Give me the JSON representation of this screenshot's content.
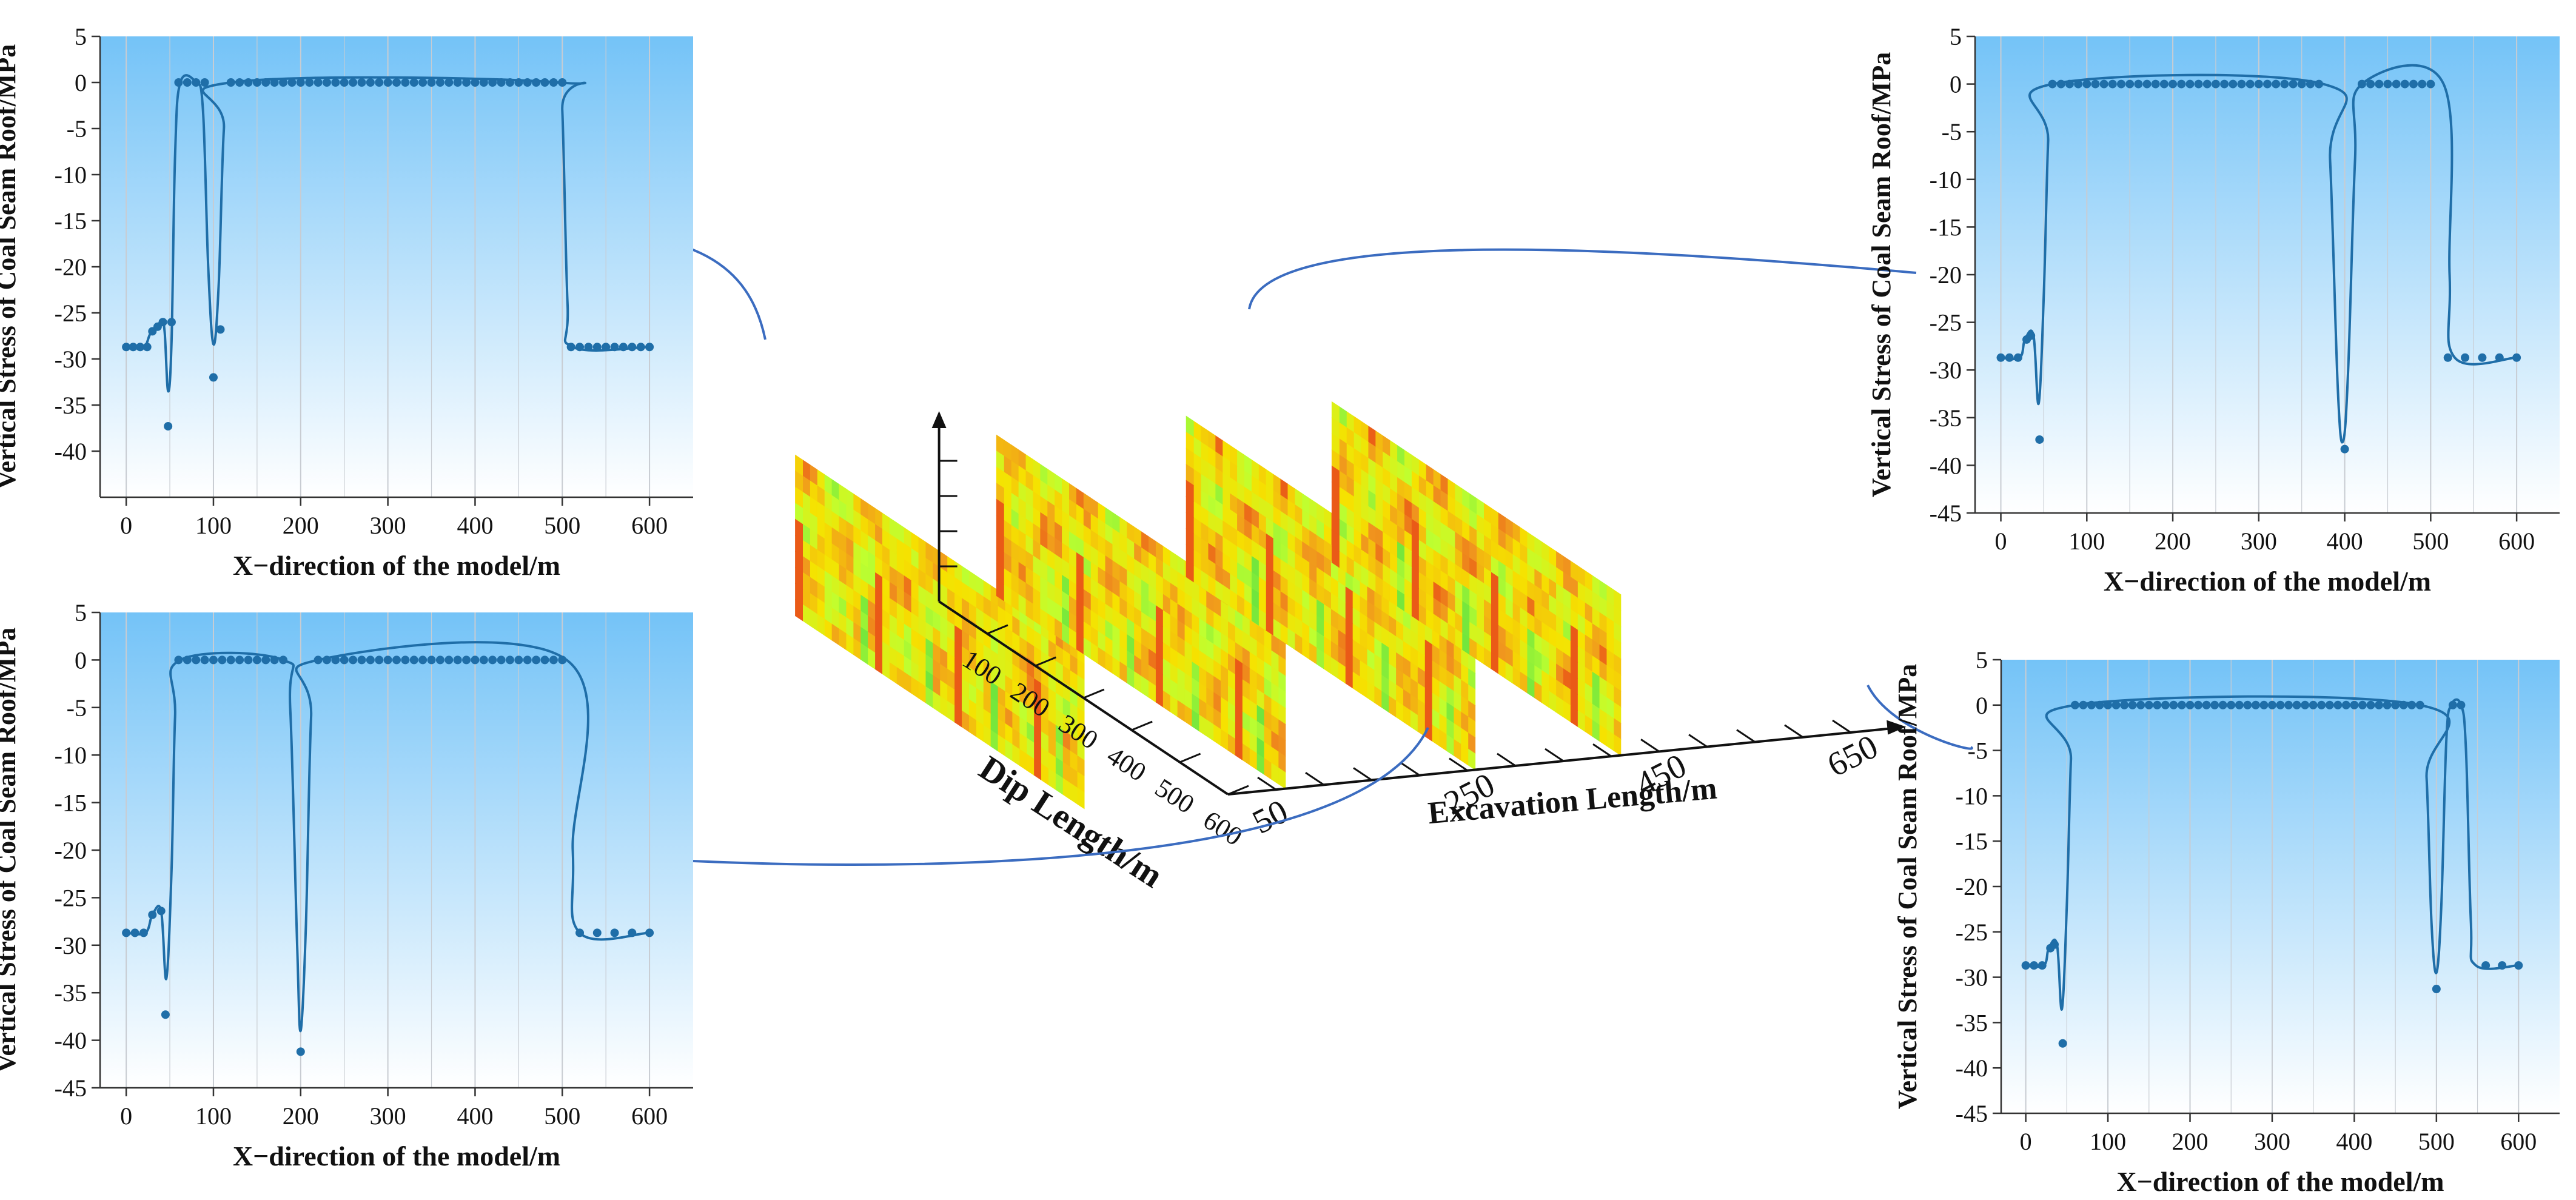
{
  "colors": {
    "series": "#1f6ea8",
    "bg_top": "#74c3f7",
    "bg_bottom": "#ffffff",
    "connector": "#3b6cc0",
    "grid": "#c8ccd2",
    "heat_low": "#bfff30",
    "heat_mid": "#f6e200",
    "heat_high": "#e8501a",
    "heat_green": "#60e040"
  },
  "center": {
    "x_axis_label": "Dip Length/m",
    "x_ticks": [
      "100",
      "200",
      "300",
      "400",
      "500",
      "600"
    ],
    "z_axis_label": "Excavation Length/m",
    "z_ticks": [
      "50",
      "250",
      "450",
      "650"
    ],
    "colormap": [
      "green",
      "yellow",
      "orange",
      "red"
    ]
  },
  "chart_data": [
    {
      "type": "scatter-line",
      "position": "top-left",
      "xlabel": "X−direction of the model/m",
      "ylabel": "Vertical Stress of Coal Seam Roof/MPa",
      "xlim": [
        -30,
        650
      ],
      "ylim": [
        -45,
        5
      ],
      "xticks": [
        0,
        100,
        200,
        300,
        400,
        500,
        600
      ],
      "yticks": [
        5,
        0,
        -5,
        -10,
        -15,
        -20,
        -25,
        -30,
        -35,
        -40
      ],
      "points": [
        [
          0,
          -28.7
        ],
        [
          8,
          -28.7
        ],
        [
          16,
          -28.7
        ],
        [
          24,
          -28.7
        ],
        [
          30,
          -27
        ],
        [
          36,
          -26.5
        ],
        [
          42,
          -26
        ],
        [
          48,
          -37.3
        ],
        [
          52,
          -26
        ],
        [
          60,
          0
        ],
        [
          70,
          0
        ],
        [
          80,
          0
        ],
        [
          90,
          0
        ],
        [
          100,
          -32
        ],
        [
          108,
          -26.8
        ],
        [
          120,
          0
        ],
        [
          130,
          0
        ],
        [
          140,
          0
        ],
        [
          150,
          0
        ],
        [
          160,
          0
        ],
        [
          170,
          0
        ],
        [
          180,
          0
        ],
        [
          190,
          0
        ],
        [
          200,
          0
        ],
        [
          210,
          0
        ],
        [
          220,
          0
        ],
        [
          230,
          0
        ],
        [
          240,
          0
        ],
        [
          250,
          0
        ],
        [
          260,
          0
        ],
        [
          270,
          0
        ],
        [
          280,
          0
        ],
        [
          290,
          0
        ],
        [
          300,
          0
        ],
        [
          310,
          0
        ],
        [
          320,
          0
        ],
        [
          330,
          0
        ],
        [
          340,
          0
        ],
        [
          350,
          0
        ],
        [
          360,
          0
        ],
        [
          370,
          0
        ],
        [
          380,
          0
        ],
        [
          390,
          0
        ],
        [
          400,
          0
        ],
        [
          410,
          0
        ],
        [
          420,
          0
        ],
        [
          430,
          0
        ],
        [
          440,
          0
        ],
        [
          450,
          0
        ],
        [
          460,
          0
        ],
        [
          470,
          0
        ],
        [
          480,
          0
        ],
        [
          490,
          0
        ],
        [
          500,
          0
        ],
        [
          510,
          -28.7
        ],
        [
          520,
          -28.7
        ],
        [
          530,
          -28.7
        ],
        [
          540,
          -28.7
        ],
        [
          550,
          -28.7
        ],
        [
          560,
          -28.7
        ],
        [
          570,
          -28.7
        ],
        [
          580,
          -28.7
        ],
        [
          590,
          -28.7
        ],
        [
          600,
          -28.7
        ]
      ],
      "curve": [
        [
          0,
          -28.7
        ],
        [
          20,
          -28.7
        ],
        [
          28,
          -27.2
        ],
        [
          40,
          -26
        ],
        [
          44,
          -27
        ],
        [
          48,
          -33.5
        ],
        [
          52,
          -28
        ],
        [
          56,
          -8
        ],
        [
          62,
          0
        ],
        [
          80,
          0
        ],
        [
          88,
          -3
        ],
        [
          94,
          -20
        ],
        [
          100,
          -28.4
        ],
        [
          106,
          -22
        ],
        [
          112,
          -5
        ],
        [
          120,
          0
        ],
        [
          495,
          0
        ],
        [
          500,
          -3
        ],
        [
          506,
          -24
        ],
        [
          512,
          -28.7
        ],
        [
          600,
          -28.7
        ]
      ]
    },
    {
      "type": "scatter-line",
      "position": "bottom-left",
      "xlabel": "X−direction of the model/m",
      "ylabel": "Vertical Stress of Coal Seam Roof/MPa",
      "xlim": [
        -30,
        650
      ],
      "ylim": [
        -45,
        5
      ],
      "xticks": [
        0,
        100,
        200,
        300,
        400,
        500,
        600
      ],
      "yticks": [
        5,
        0,
        -5,
        -10,
        -15,
        -20,
        -25,
        -30,
        -35,
        -40,
        -45
      ],
      "points": [
        [
          0,
          -28.7
        ],
        [
          10,
          -28.7
        ],
        [
          20,
          -28.7
        ],
        [
          30,
          -26.8
        ],
        [
          40,
          -26.4
        ],
        [
          45,
          -37.3
        ],
        [
          60,
          0
        ],
        [
          70,
          0
        ],
        [
          80,
          0
        ],
        [
          90,
          0
        ],
        [
          100,
          0
        ],
        [
          110,
          0
        ],
        [
          120,
          0
        ],
        [
          130,
          0
        ],
        [
          140,
          0
        ],
        [
          150,
          0
        ],
        [
          160,
          0
        ],
        [
          170,
          0
        ],
        [
          180,
          0
        ],
        [
          200,
          -41.2
        ],
        [
          220,
          0
        ],
        [
          230,
          0
        ],
        [
          240,
          0
        ],
        [
          250,
          0
        ],
        [
          260,
          0
        ],
        [
          270,
          0
        ],
        [
          280,
          0
        ],
        [
          290,
          0
        ],
        [
          300,
          0
        ],
        [
          310,
          0
        ],
        [
          320,
          0
        ],
        [
          330,
          0
        ],
        [
          340,
          0
        ],
        [
          350,
          0
        ],
        [
          360,
          0
        ],
        [
          370,
          0
        ],
        [
          380,
          0
        ],
        [
          390,
          0
        ],
        [
          400,
          0
        ],
        [
          410,
          0
        ],
        [
          420,
          0
        ],
        [
          430,
          0
        ],
        [
          440,
          0
        ],
        [
          450,
          0
        ],
        [
          460,
          0
        ],
        [
          470,
          0
        ],
        [
          480,
          0
        ],
        [
          490,
          0
        ],
        [
          500,
          0
        ],
        [
          520,
          -28.7
        ],
        [
          540,
          -28.7
        ],
        [
          560,
          -28.7
        ],
        [
          580,
          -28.7
        ],
        [
          600,
          -28.7
        ]
      ],
      "curve": [
        [
          0,
          -28.7
        ],
        [
          22,
          -28.7
        ],
        [
          30,
          -26.8
        ],
        [
          40,
          -26.4
        ],
        [
          46,
          -33.5
        ],
        [
          52,
          -22
        ],
        [
          56,
          -6
        ],
        [
          62,
          0
        ],
        [
          180,
          0
        ],
        [
          188,
          -5
        ],
        [
          196,
          -30
        ],
        [
          200,
          -39
        ],
        [
          206,
          -28
        ],
        [
          212,
          -6
        ],
        [
          220,
          0
        ],
        [
          505,
          0
        ],
        [
          512,
          -20
        ],
        [
          520,
          -28.7
        ],
        [
          600,
          -28.7
        ]
      ]
    },
    {
      "type": "scatter-line",
      "position": "top-right",
      "xlabel": "X−direction of the model/m",
      "ylabel": "Vertical Stress of Coal Seam Roof/MPa",
      "xlim": [
        -30,
        650
      ],
      "ylim": [
        -45,
        5
      ],
      "xticks": [
        0,
        100,
        200,
        300,
        400,
        500,
        600
      ],
      "yticks": [
        5,
        0,
        -5,
        -10,
        -15,
        -20,
        -25,
        -30,
        -35,
        -40,
        -45
      ],
      "points": [
        [
          0,
          -28.7
        ],
        [
          10,
          -28.7
        ],
        [
          20,
          -28.7
        ],
        [
          30,
          -26.8
        ],
        [
          35,
          -26.4
        ],
        [
          45,
          -37.3
        ],
        [
          60,
          0
        ],
        [
          70,
          0
        ],
        [
          80,
          0
        ],
        [
          90,
          0
        ],
        [
          100,
          0
        ],
        [
          110,
          0
        ],
        [
          120,
          0
        ],
        [
          130,
          0
        ],
        [
          140,
          0
        ],
        [
          150,
          0
        ],
        [
          160,
          0
        ],
        [
          170,
          0
        ],
        [
          180,
          0
        ],
        [
          190,
          0
        ],
        [
          200,
          0
        ],
        [
          210,
          0
        ],
        [
          220,
          0
        ],
        [
          230,
          0
        ],
        [
          240,
          0
        ],
        [
          250,
          0
        ],
        [
          260,
          0
        ],
        [
          270,
          0
        ],
        [
          280,
          0
        ],
        [
          290,
          0
        ],
        [
          300,
          0
        ],
        [
          310,
          0
        ],
        [
          320,
          0
        ],
        [
          330,
          0
        ],
        [
          340,
          0
        ],
        [
          350,
          0
        ],
        [
          360,
          0
        ],
        [
          370,
          0
        ],
        [
          400,
          -38.3
        ],
        [
          420,
          0
        ],
        [
          430,
          0
        ],
        [
          440,
          0
        ],
        [
          450,
          0
        ],
        [
          460,
          0
        ],
        [
          470,
          0
        ],
        [
          480,
          0
        ],
        [
          490,
          0
        ],
        [
          500,
          0
        ],
        [
          520,
          -28.7
        ],
        [
          540,
          -28.7
        ],
        [
          560,
          -28.7
        ],
        [
          580,
          -28.7
        ],
        [
          600,
          -28.7
        ]
      ],
      "curve": [
        [
          0,
          -28.7
        ],
        [
          22,
          -28.7
        ],
        [
          28,
          -26.8
        ],
        [
          38,
          -26.4
        ],
        [
          44,
          -33.5
        ],
        [
          50,
          -22
        ],
        [
          55,
          -6
        ],
        [
          60,
          0
        ],
        [
          375,
          0
        ],
        [
          383,
          -8
        ],
        [
          392,
          -32
        ],
        [
          398,
          -37.5
        ],
        [
          404,
          -30
        ],
        [
          412,
          -8
        ],
        [
          420,
          0
        ],
        [
          515,
          0
        ],
        [
          522,
          -20
        ],
        [
          528,
          -28.7
        ],
        [
          600,
          -28.7
        ]
      ]
    },
    {
      "type": "scatter-line",
      "position": "bottom-right",
      "xlabel": "X−direction of the model/m",
      "ylabel": "Vertical Stress of Coal Seam Roof/MPa",
      "xlim": [
        -30,
        650
      ],
      "ylim": [
        -45,
        5
      ],
      "xticks": [
        0,
        100,
        200,
        300,
        400,
        500,
        600
      ],
      "yticks": [
        5,
        0,
        -5,
        -10,
        -15,
        -20,
        -25,
        -30,
        -35,
        -40,
        -45
      ],
      "points": [
        [
          0,
          -28.7
        ],
        [
          10,
          -28.7
        ],
        [
          20,
          -28.7
        ],
        [
          30,
          -26.8
        ],
        [
          35,
          -26.4
        ],
        [
          45,
          -37.3
        ],
        [
          60,
          0
        ],
        [
          70,
          0
        ],
        [
          80,
          0
        ],
        [
          90,
          0
        ],
        [
          100,
          0
        ],
        [
          110,
          0
        ],
        [
          120,
          0
        ],
        [
          130,
          0
        ],
        [
          140,
          0
        ],
        [
          150,
          0
        ],
        [
          160,
          0
        ],
        [
          170,
          0
        ],
        [
          180,
          0
        ],
        [
          190,
          0
        ],
        [
          200,
          0
        ],
        [
          210,
          0
        ],
        [
          220,
          0
        ],
        [
          230,
          0
        ],
        [
          240,
          0
        ],
        [
          250,
          0
        ],
        [
          260,
          0
        ],
        [
          270,
          0
        ],
        [
          280,
          0
        ],
        [
          290,
          0
        ],
        [
          300,
          0
        ],
        [
          310,
          0
        ],
        [
          320,
          0
        ],
        [
          330,
          0
        ],
        [
          340,
          0
        ],
        [
          350,
          0
        ],
        [
          360,
          0
        ],
        [
          370,
          0
        ],
        [
          380,
          0
        ],
        [
          390,
          0
        ],
        [
          400,
          0
        ],
        [
          410,
          0
        ],
        [
          420,
          0
        ],
        [
          430,
          0
        ],
        [
          440,
          0
        ],
        [
          450,
          0
        ],
        [
          460,
          0
        ],
        [
          470,
          0
        ],
        [
          480,
          0
        ],
        [
          500,
          -31.3
        ],
        [
          520,
          0
        ],
        [
          530,
          0
        ],
        [
          560,
          -28.7
        ],
        [
          580,
          -28.7
        ],
        [
          600,
          -28.7
        ]
      ],
      "curve": [
        [
          0,
          -28.7
        ],
        [
          22,
          -28.7
        ],
        [
          28,
          -26.8
        ],
        [
          38,
          -26.4
        ],
        [
          44,
          -33.5
        ],
        [
          50,
          -22
        ],
        [
          55,
          -6
        ],
        [
          60,
          0
        ],
        [
          480,
          0
        ],
        [
          488,
          -8
        ],
        [
          494,
          -24
        ],
        [
          500,
          -29.5
        ],
        [
          506,
          -22
        ],
        [
          512,
          -4
        ],
        [
          518,
          0
        ],
        [
          530,
          0
        ],
        [
          536,
          -5
        ],
        [
          542,
          -24
        ],
        [
          548,
          -28.7
        ],
        [
          600,
          -28.7
        ]
      ]
    }
  ]
}
